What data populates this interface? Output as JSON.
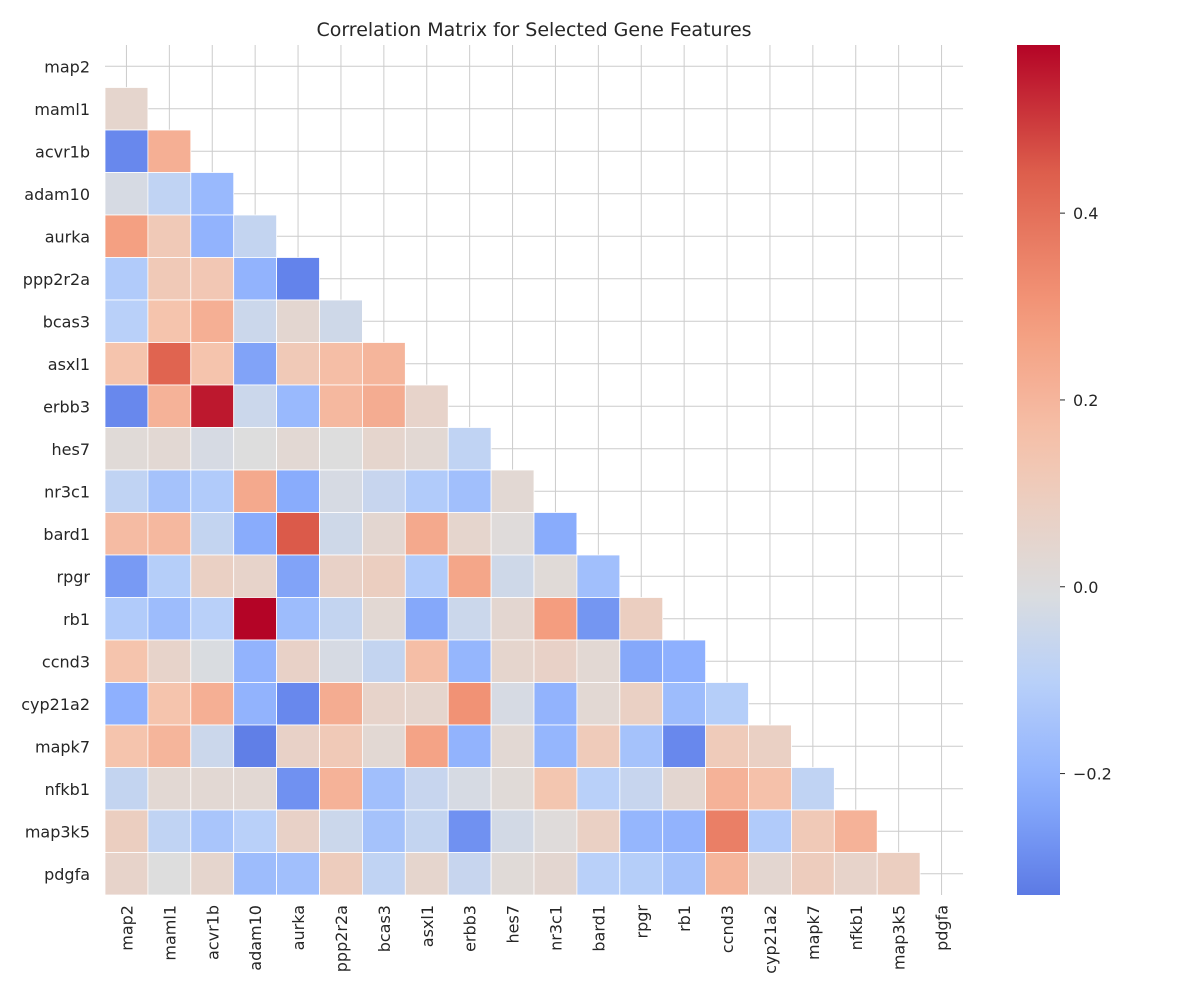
{
  "chart_data": {
    "type": "heatmap",
    "title": "Correlation Matrix for Selected Gene Features",
    "labels": [
      "map2",
      "maml1",
      "acvr1b",
      "adam10",
      "aurka",
      "ppp2r2a",
      "bcas3",
      "asxl1",
      "erbb3",
      "hes7",
      "nr3c1",
      "bard1",
      "rpgr",
      "rb1",
      "ccnd3",
      "cyp21a2",
      "mapk7",
      "nfkb1",
      "map3k5",
      "pdgfa"
    ],
    "mask": "upper-triangle-including-diagonal",
    "colormap": "coolwarm",
    "color_range": [
      -0.33,
      0.58
    ],
    "colorbar_ticks": [
      {
        "value": 0.4,
        "label": "0.4"
      },
      {
        "value": 0.2,
        "label": "0.2"
      },
      {
        "value": 0.0,
        "label": "0.0"
      },
      {
        "value": -0.2,
        "label": "−0.2"
      }
    ],
    "grid": true,
    "matrix_lower": [
      [],
      [
        0.05
      ],
      [
        -0.3,
        0.22
      ],
      [
        -0.02,
        -0.08,
        -0.18
      ],
      [
        0.27,
        0.12,
        -0.2,
        -0.07
      ],
      [
        -0.12,
        0.12,
        0.13,
        -0.2,
        -0.31
      ],
      [
        -0.1,
        0.15,
        0.22,
        -0.05,
        0.04,
        -0.04
      ],
      [
        0.15,
        0.43,
        0.15,
        -0.24,
        0.12,
        0.17,
        0.2
      ],
      [
        -0.3,
        0.21,
        0.55,
        -0.05,
        -0.18,
        0.19,
        0.23,
        0.06
      ],
      [
        0.02,
        0.03,
        -0.02,
        0.0,
        0.03,
        0.0,
        0.05,
        0.03,
        -0.08
      ],
      [
        -0.08,
        -0.15,
        -0.12,
        0.24,
        -0.22,
        -0.02,
        -0.06,
        -0.12,
        -0.16,
        0.03
      ],
      [
        0.18,
        0.19,
        -0.07,
        -0.22,
        0.45,
        -0.04,
        0.04,
        0.24,
        0.05,
        0.01,
        -0.22
      ],
      [
        -0.26,
        -0.11,
        0.08,
        0.06,
        -0.24,
        0.07,
        0.09,
        -0.12,
        0.25,
        -0.04,
        0.02,
        -0.16
      ],
      [
        -0.12,
        -0.17,
        -0.1,
        0.58,
        -0.17,
        -0.07,
        0.03,
        -0.23,
        -0.05,
        0.04,
        0.28,
        -0.27,
        0.09
      ],
      [
        0.15,
        0.06,
        -0.01,
        -0.2,
        0.07,
        -0.02,
        -0.07,
        0.17,
        -0.19,
        0.05,
        0.07,
        0.03,
        -0.23,
        -0.21
      ],
      [
        -0.21,
        0.15,
        0.22,
        -0.2,
        -0.3,
        0.23,
        0.06,
        0.05,
        0.31,
        -0.02,
        -0.2,
        0.03,
        0.08,
        -0.17,
        -0.11
      ],
      [
        0.15,
        0.2,
        -0.05,
        -0.32,
        0.07,
        0.12,
        0.03,
        0.26,
        -0.2,
        0.03,
        -0.19,
        0.11,
        -0.15,
        -0.3,
        0.11,
        0.08
      ],
      [
        -0.07,
        0.03,
        0.03,
        0.03,
        -0.28,
        0.21,
        -0.16,
        -0.06,
        -0.02,
        0.02,
        0.14,
        -0.1,
        -0.06,
        0.04,
        0.21,
        0.16,
        -0.08
      ],
      [
        0.09,
        -0.08,
        -0.14,
        -0.1,
        0.07,
        -0.05,
        -0.15,
        -0.07,
        -0.28,
        -0.03,
        0.01,
        0.08,
        -0.19,
        -0.2,
        0.36,
        -0.12,
        0.12,
        0.21
      ],
      [
        0.06,
        0.0,
        0.05,
        -0.17,
        -0.16,
        0.1,
        -0.08,
        0.05,
        -0.06,
        0.02,
        0.04,
        -0.1,
        -0.11,
        -0.15,
        0.2,
        0.04,
        0.1,
        0.06,
        0.09
      ]
    ]
  }
}
